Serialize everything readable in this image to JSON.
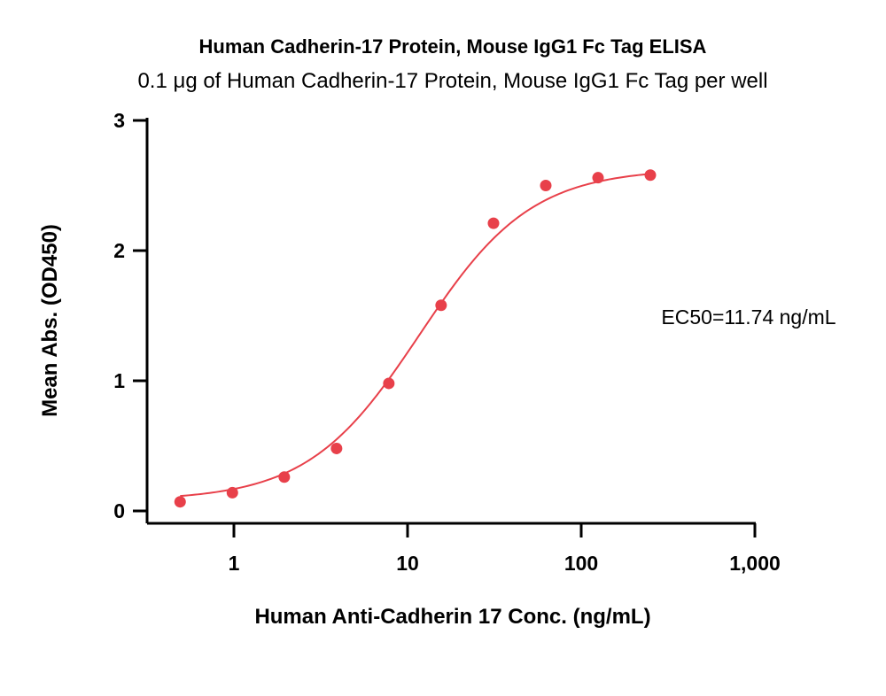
{
  "chart_data": {
    "type": "scatter",
    "title": "Human Cadherin-17 Protein, Mouse IgG1 Fc Tag ELISA",
    "subtitle": "0.1 μg of Human Cadherin-17 Protein, Mouse IgG1 Fc Tag per well",
    "xlabel": "Human Anti-Cadherin 17 Conc. (ng/mL)",
    "ylabel": "Mean Abs. (OD450)",
    "x_scale": "log",
    "xlim": [
      0.3,
      1000
    ],
    "ylim": [
      0,
      3
    ],
    "x_ticks": [
      1,
      10,
      100,
      1000
    ],
    "x_tick_labels": [
      "1",
      "10",
      "100",
      "1,000"
    ],
    "y_ticks": [
      0,
      1,
      2,
      3
    ],
    "y_tick_labels": [
      "0",
      "1",
      "2",
      "3"
    ],
    "grid": false,
    "legend": "none",
    "series": [
      {
        "x": [
          0.49,
          0.98,
          1.95,
          3.9,
          7.8,
          15.6,
          31.25,
          62.5,
          125,
          250
        ],
        "y": [
          0.07,
          0.14,
          0.26,
          0.48,
          0.98,
          1.58,
          2.21,
          2.5,
          2.56,
          2.58
        ],
        "color": "#e8404a"
      }
    ],
    "fit_curve": {
      "type": "4PL",
      "bottom": 0.08,
      "top": 2.63,
      "ec50": 11.74,
      "hill": 1.35,
      "color": "#e8404a"
    },
    "annotations": [
      "EC50=11.74 ng/mL"
    ]
  }
}
